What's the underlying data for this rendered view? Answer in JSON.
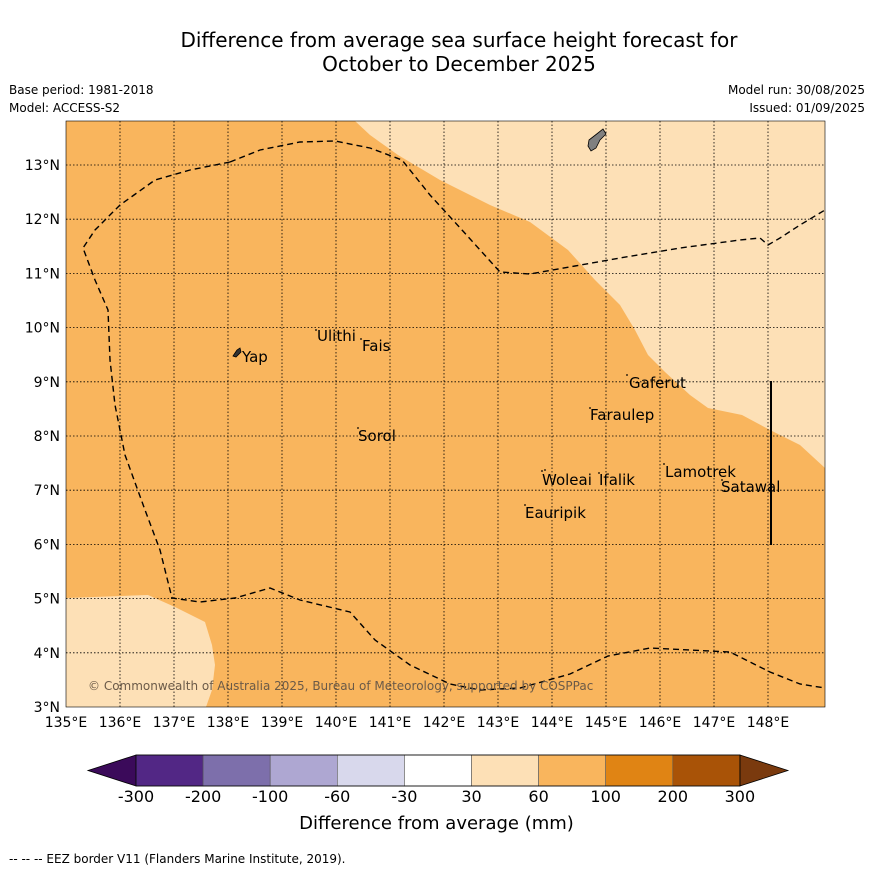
{
  "title_line1": "Difference from average sea surface height forecast for",
  "title_line2": "October to December 2025",
  "meta": {
    "base_period": "Base period: 1981-2018",
    "model": "Model: ACCESS-S2",
    "model_run": "Model run: 30/08/2025",
    "issued": "Issued: 01/09/2025"
  },
  "map": {
    "lon_labels": [
      "135°E",
      "136°E",
      "137°E",
      "138°E",
      "139°E",
      "140°E",
      "141°E",
      "142°E",
      "143°E",
      "144°E",
      "145°E",
      "146°E",
      "147°E",
      "148°E"
    ],
    "lat_labels": [
      "13°N",
      "12°N",
      "11°N",
      "10°N",
      "9°N",
      "8°N",
      "7°N",
      "6°N",
      "5°N",
      "4°N",
      "3°N"
    ],
    "places": [
      "Yap",
      "Ulithi",
      "Fais",
      "Sorol",
      "Gaferut",
      "Faraulep",
      "Woleai",
      "Ifalik",
      "Lamotrek",
      "Satawal",
      "Eauripik"
    ],
    "copyright": "© Commonwealth of Australia 2025, Bureau of Meteorology, supported by COSPPac",
    "colors": {
      "band_60_100": "#f9b55d",
      "band_30_60": "#fde0b6",
      "land": "#808080"
    }
  },
  "colorbar": {
    "labels": [
      "-300",
      "-200",
      "-100",
      "-60",
      "-30",
      "30",
      "60",
      "100",
      "200",
      "300"
    ],
    "colors": [
      "#3b0a5a",
      "#522785",
      "#7d6fab",
      "#aea7d2",
      "#d8d8ec",
      "#ffffff",
      "#fde0b6",
      "#f9b55d",
      "#e08414",
      "#a95307",
      "#7a3a0e"
    ],
    "title": "Difference from average (mm)"
  },
  "footer": "--  --  -- EEZ border V11 (Flanders Marine Institute, 2019)."
}
